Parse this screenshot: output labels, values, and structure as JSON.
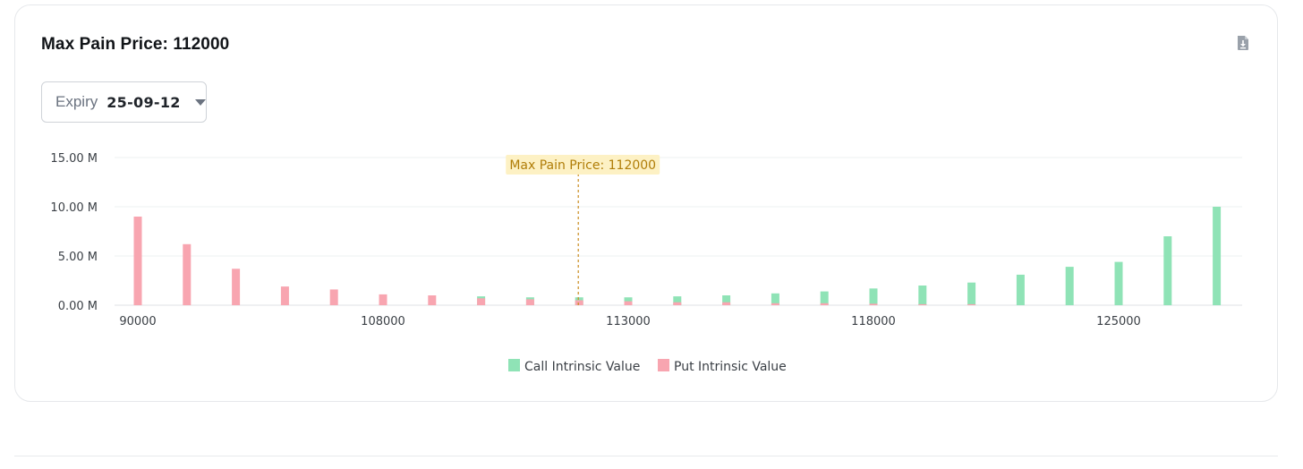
{
  "card": {
    "title": "Max Pain Price: 112000",
    "download_icon": "download-file-icon",
    "expiry": {
      "label": "Expiry",
      "value": "25-09-12",
      "icon": "caret-down-icon"
    }
  },
  "colors": {
    "call": "#8fe3b6",
    "put": "#f8a5b0",
    "annotation_bg": "#fdf1c4",
    "annotation_text": "#b07d08",
    "annotation_line": "#c98a1c",
    "grid": "#eef0f2",
    "axis_text": "#3a3f45"
  },
  "chart_data": {
    "type": "bar",
    "y_tick_labels": [
      "0.00 M",
      "5.00 M",
      "10.00 M",
      "15.00 M"
    ],
    "ylim": [
      0,
      15
    ],
    "x_tick_labels": [
      {
        "index": 0,
        "label": "90000"
      },
      {
        "index": 5,
        "label": "108000"
      },
      {
        "index": 10,
        "label": "113000"
      },
      {
        "index": 15,
        "label": "118000"
      },
      {
        "index": 20,
        "label": "125000"
      }
    ],
    "category_count": 23,
    "series": [
      {
        "name": "Call Intrinsic Value",
        "values": [
          0,
          0,
          0,
          0,
          0,
          0,
          0,
          0.9,
          0.8,
          0.8,
          0.8,
          0.9,
          1.0,
          1.2,
          1.4,
          1.7,
          2.0,
          2.3,
          3.1,
          3.9,
          4.4,
          7.0,
          10.0
        ]
      },
      {
        "name": "Put Intrinsic Value",
        "values": [
          9.0,
          6.2,
          3.7,
          1.9,
          1.6,
          1.1,
          1.0,
          0.7,
          0.6,
          0.5,
          0.4,
          0.3,
          0.3,
          0.2,
          0.2,
          0.15,
          0.1,
          0.1,
          0,
          0,
          0,
          0,
          0
        ]
      }
    ],
    "annotation": {
      "label": "Max Pain Price: 112000",
      "index": 9
    },
    "legend": [
      "Call Intrinsic Value",
      "Put Intrinsic Value"
    ],
    "legend_position": "bottom-center",
    "grid": true
  }
}
